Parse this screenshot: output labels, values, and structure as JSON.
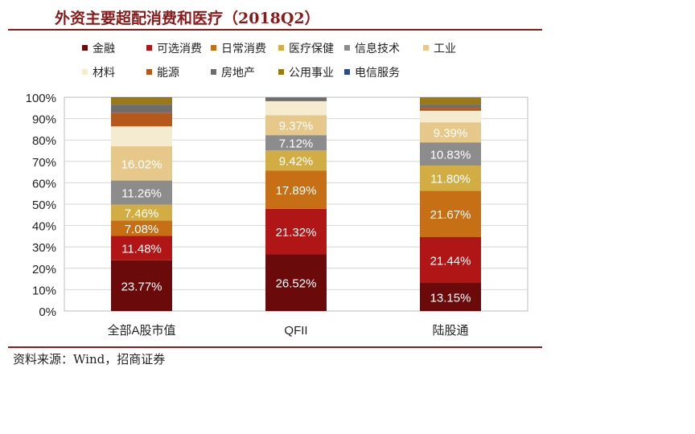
{
  "title": "外资主要超配消费和医疗（2018Q2）",
  "source": "资料来源：Wind，招商证券",
  "chart_data": {
    "type": "bar",
    "stacked": true,
    "categories": [
      "全部A股市值",
      "QFII",
      "陆股通"
    ],
    "ylim": [
      0,
      100
    ],
    "yticks": [
      "0%",
      "10%",
      "20%",
      "30%",
      "40%",
      "50%",
      "60%",
      "70%",
      "80%",
      "90%",
      "100%"
    ],
    "grid": true,
    "legend_position": "top",
    "series": [
      {
        "name": "金融",
        "color": "#6b0a0a",
        "values": [
          23.77,
          26.52,
          13.15
        ],
        "labels": [
          "23.77%",
          "26.52%",
          "13.15%"
        ]
      },
      {
        "name": "可选消费",
        "color": "#b01616",
        "values": [
          11.48,
          21.32,
          21.44
        ],
        "labels": [
          "11.48%",
          "21.32%",
          "21.44%"
        ]
      },
      {
        "name": "日常消费",
        "color": "#c76f14",
        "values": [
          7.08,
          17.89,
          21.67
        ],
        "labels": [
          "7.08%",
          "17.89%",
          "21.67%"
        ]
      },
      {
        "name": "医疗保健",
        "color": "#d2ad44",
        "values": [
          7.46,
          9.42,
          11.8
        ],
        "labels": [
          "7.46%",
          "9.42%",
          "11.80%"
        ]
      },
      {
        "name": "信息技术",
        "color": "#8c8c8c",
        "values": [
          11.26,
          7.12,
          10.83
        ],
        "labels": [
          "11.26%",
          "7.12%",
          "10.83%"
        ]
      },
      {
        "name": "工业",
        "color": "#e6c98a",
        "values": [
          16.02,
          9.37,
          9.39
        ],
        "labels": [
          "16.02%",
          "9.37%",
          "9.39%"
        ]
      },
      {
        "name": "材料",
        "color": "#f4ebd0",
        "values": [
          9.3,
          6.5,
          5.4
        ],
        "labels": [
          "",
          "",
          ""
        ]
      },
      {
        "name": "能源",
        "color": "#b5581c",
        "values": [
          6.4,
          0.2,
          1.4
        ],
        "labels": [
          "",
          "",
          ""
        ]
      },
      {
        "name": "房地产",
        "color": "#6d6d6d",
        "values": [
          3.8,
          1.3,
          1.5
        ],
        "labels": [
          "",
          "",
          ""
        ]
      },
      {
        "name": "公用事业",
        "color": "#9a7a14",
        "values": [
          3.2,
          0.3,
          3.4
        ],
        "labels": [
          "",
          "",
          ""
        ]
      },
      {
        "name": "电信服务",
        "color": "#2c4a8a",
        "values": [
          0.23,
          0.05,
          0.0
        ],
        "labels": [
          "",
          "",
          ""
        ]
      }
    ]
  }
}
